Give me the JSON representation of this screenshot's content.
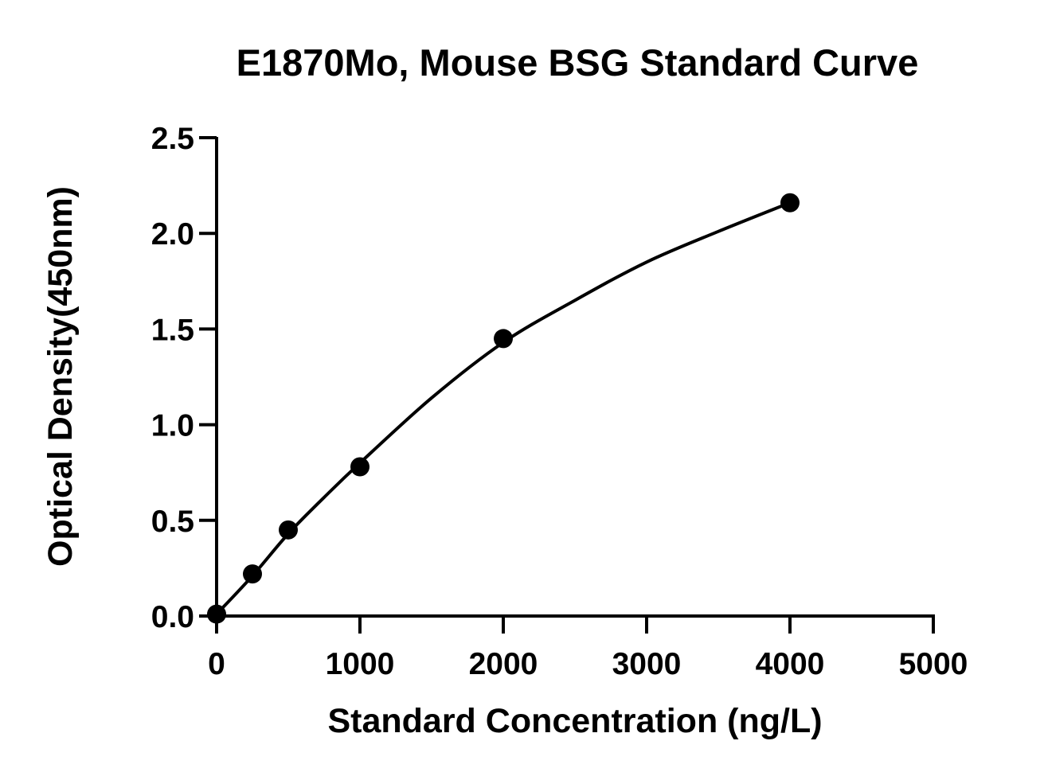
{
  "chart_data": {
    "type": "scatter",
    "title": "E1870Mo, Mouse BSG Standard Curve",
    "xlabel": "Standard Concentration (ng/L)",
    "ylabel": "Optical Density(450nm)",
    "xlim": [
      0,
      5000
    ],
    "ylim": [
      0,
      2.5
    ],
    "x_ticks": [
      "0",
      "1000",
      "2000",
      "3000",
      "4000",
      "5000"
    ],
    "y_ticks": [
      "0.0",
      "0.5",
      "1.0",
      "1.5",
      "2.0",
      "2.5"
    ],
    "grid": false,
    "legend": "none",
    "series": [
      {
        "x": [
          0,
          250,
          500,
          1000,
          2000,
          4000
        ],
        "y": [
          0.01,
          0.22,
          0.45,
          0.78,
          1.45,
          2.16
        ]
      }
    ],
    "fit_curve": {
      "x": [
        0,
        250,
        500,
        750,
        1000,
        1500,
        2000,
        2500,
        3000,
        3500,
        4000
      ],
      "y": [
        0.01,
        0.21,
        0.43,
        0.62,
        0.8,
        1.14,
        1.43,
        1.65,
        1.85,
        2.01,
        2.16
      ]
    },
    "colors": {
      "points": "#000000",
      "curve": "#000000",
      "axes": "#000000"
    }
  }
}
